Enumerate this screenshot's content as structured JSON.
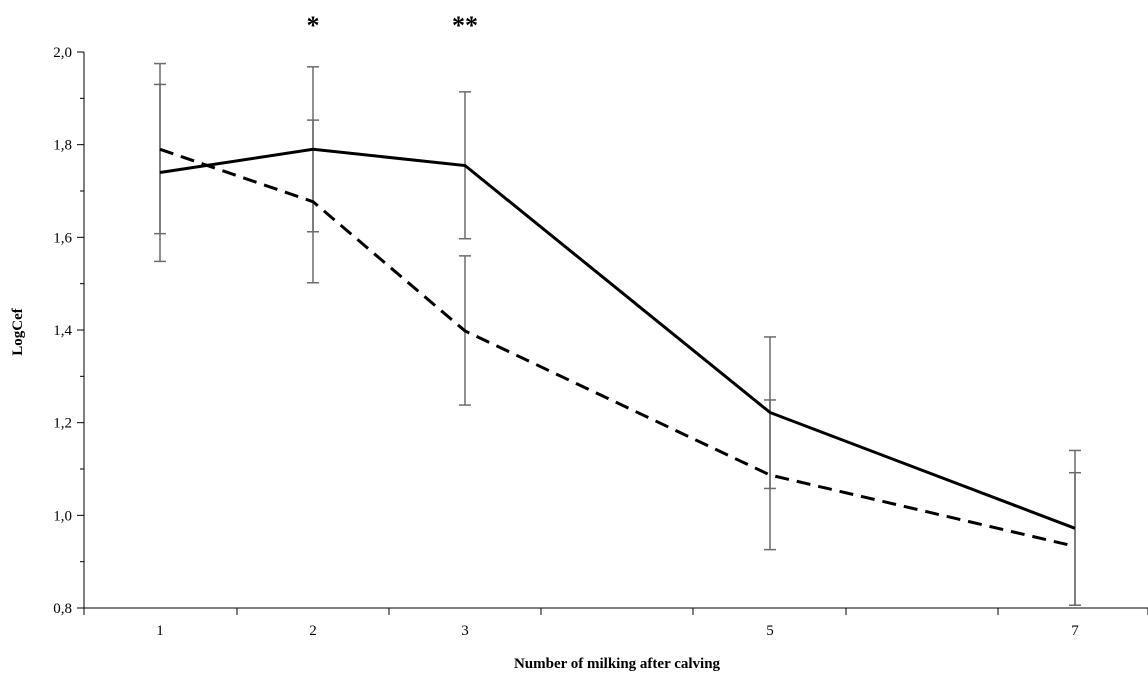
{
  "chart_data": {
    "type": "line",
    "xlabel": "Number of milking after calving",
    "ylabel": "LogCef",
    "x": [
      1,
      2,
      3,
      5,
      7
    ],
    "x_tick_labels": [
      "1",
      "2",
      "3",
      "5",
      "7"
    ],
    "xlim": [
      0.5,
      7.5
    ],
    "ylim": [
      0.8,
      2.0
    ],
    "y_ticks": [
      0.8,
      1.0,
      1.2,
      1.4,
      1.6,
      1.8,
      2.0
    ],
    "y_tick_labels": [
      "0,8",
      "1,0",
      "1,2",
      "1,4",
      "1,6",
      "1,8",
      "2,0"
    ],
    "grid": false,
    "legend": "none",
    "series": [
      {
        "style": "solid",
        "color": "#000000",
        "values": [
          1.74,
          1.79,
          1.755,
          1.222,
          0.972
        ],
        "error_low": [
          1.548,
          1.612,
          1.597,
          1.058,
          0.806
        ],
        "error_high": [
          1.93,
          1.968,
          1.914,
          1.385,
          1.14
        ]
      },
      {
        "style": "dashed",
        "color": "#000000",
        "values": [
          1.79,
          1.677,
          1.398,
          1.087,
          0.933
        ],
        "error_low": [
          1.608,
          1.502,
          1.238,
          0.926,
          0.806
        ],
        "error_high": [
          1.975,
          1.853,
          1.56,
          1.249,
          1.092
        ]
      }
    ],
    "error_bar_color": "#6b6b6b",
    "annotations": [
      {
        "x": 2,
        "text": "*"
      },
      {
        "x": 3,
        "text": "**"
      }
    ]
  }
}
